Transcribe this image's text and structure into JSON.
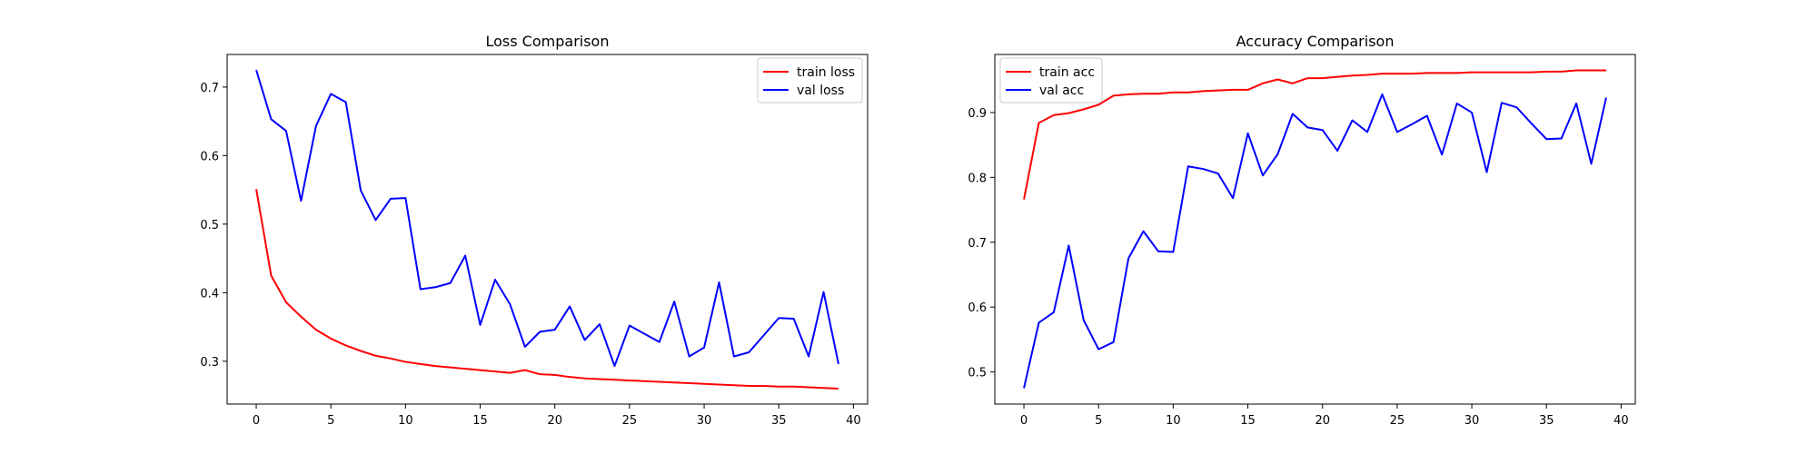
{
  "chart_data": [
    {
      "type": "line",
      "title": "Loss Comparison",
      "xlabel": "",
      "ylabel": "",
      "xlim": [
        -1.95,
        40.95
      ],
      "ylim": [
        0.2375,
        0.7475
      ],
      "xticks": [
        0,
        5,
        10,
        15,
        20,
        25,
        30,
        35,
        40
      ],
      "yticks": [
        0.3,
        0.4,
        0.5,
        0.6,
        0.7
      ],
      "legend": "top-right",
      "grid": false,
      "x": [
        0,
        1,
        2,
        3,
        4,
        5,
        6,
        7,
        8,
        9,
        10,
        11,
        12,
        13,
        14,
        15,
        16,
        17,
        18,
        19,
        20,
        21,
        22,
        23,
        24,
        25,
        26,
        27,
        28,
        29,
        30,
        31,
        32,
        33,
        34,
        35,
        36,
        37,
        38,
        39
      ],
      "series": [
        {
          "name": "train loss",
          "color": "#ff0000",
          "values": [
            0.551,
            0.425,
            0.386,
            0.365,
            0.346,
            0.333,
            0.323,
            0.315,
            0.308,
            0.304,
            0.299,
            0.296,
            0.293,
            0.291,
            0.289,
            0.287,
            0.285,
            0.283,
            0.287,
            0.281,
            0.28,
            0.277,
            0.275,
            0.274,
            0.273,
            0.272,
            0.271,
            0.27,
            0.269,
            0.268,
            0.267,
            0.266,
            0.265,
            0.264,
            0.264,
            0.263,
            0.263,
            0.262,
            0.261,
            0.26
          ]
        },
        {
          "name": "val loss",
          "color": "#0000ff",
          "values": [
            0.725,
            0.653,
            0.636,
            0.534,
            0.643,
            0.69,
            0.678,
            0.549,
            0.506,
            0.537,
            0.538,
            0.405,
            0.408,
            0.414,
            0.454,
            0.353,
            0.419,
            0.383,
            0.321,
            0.343,
            0.346,
            0.38,
            0.331,
            0.354,
            0.293,
            0.352,
            0.34,
            0.328,
            0.387,
            0.307,
            0.32,
            0.415,
            0.307,
            0.313,
            0.338,
            0.363,
            0.362,
            0.307,
            0.401,
            0.296
          ]
        }
      ]
    },
    {
      "type": "line",
      "title": "Accuracy Comparison",
      "xlabel": "",
      "ylabel": "",
      "xlim": [
        -1.95,
        40.95
      ],
      "ylim": [
        0.4505,
        0.9895
      ],
      "xticks": [
        0,
        5,
        10,
        15,
        20,
        25,
        30,
        35,
        40
      ],
      "yticks": [
        0.5,
        0.6,
        0.7,
        0.8,
        0.9
      ],
      "legend": "top-left",
      "grid": false,
      "x": [
        0,
        1,
        2,
        3,
        4,
        5,
        6,
        7,
        8,
        9,
        10,
        11,
        12,
        13,
        14,
        15,
        16,
        17,
        18,
        19,
        20,
        21,
        22,
        23,
        24,
        25,
        26,
        27,
        28,
        29,
        30,
        31,
        32,
        33,
        34,
        35,
        36,
        37,
        38,
        39
      ],
      "series": [
        {
          "name": "train acc",
          "color": "#ff0000",
          "values": [
            0.766,
            0.884,
            0.896,
            0.899,
            0.905,
            0.912,
            0.926,
            0.928,
            0.929,
            0.929,
            0.931,
            0.931,
            0.933,
            0.934,
            0.935,
            0.935,
            0.945,
            0.951,
            0.945,
            0.953,
            0.953,
            0.955,
            0.957,
            0.958,
            0.96,
            0.96,
            0.96,
            0.961,
            0.961,
            0.961,
            0.962,
            0.962,
            0.962,
            0.962,
            0.962,
            0.963,
            0.963,
            0.965,
            0.965,
            0.965
          ]
        },
        {
          "name": "val acc",
          "color": "#0000ff",
          "values": [
            0.475,
            0.576,
            0.592,
            0.695,
            0.58,
            0.535,
            0.546,
            0.675,
            0.717,
            0.686,
            0.685,
            0.817,
            0.813,
            0.806,
            0.768,
            0.868,
            0.803,
            0.836,
            0.898,
            0.877,
            0.873,
            0.841,
            0.888,
            0.87,
            0.928,
            0.87,
            0.882,
            0.895,
            0.835,
            0.914,
            0.9,
            0.808,
            0.915,
            0.908,
            0.883,
            0.859,
            0.86,
            0.914,
            0.821,
            0.923
          ]
        }
      ]
    }
  ]
}
